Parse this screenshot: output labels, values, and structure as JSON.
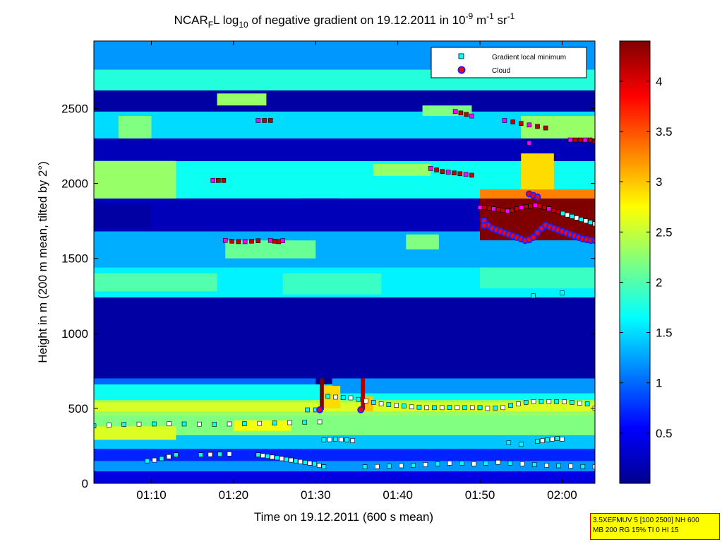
{
  "figure": {
    "title_parts": {
      "t1": "NCAR",
      "t1_sub": "F",
      "t2": "L log",
      "t2_sub": "10",
      "t3": " of negative gradient on 19.12.2011 in 10",
      "t3_sup1": "-9",
      "t4": " m",
      "t4_sup": "-1",
      "t5": " sr",
      "t5_sup": "-1"
    },
    "settings_line1": "3.5XEFMUV 5 [100 2500] NH 600",
    "settings_line2": "MB 200 RG 15% TI 0 HI 15"
  },
  "chart_data": {
    "type": "heatmap",
    "xlabel": "Time on 19.12.2011 (600 s mean)",
    "ylabel": "Height in m (200 m mean, tilted by 2°)",
    "x_range_min": [
      63,
      124
    ],
    "xticks_min": [
      70,
      80,
      90,
      100,
      110,
      120
    ],
    "xtick_labels": [
      "01:10",
      "01:20",
      "01:30",
      "01:40",
      "01:50",
      "02:00"
    ],
    "ylim": [
      0,
      2950
    ],
    "yticks": [
      0,
      500,
      1000,
      1500,
      2000,
      2500
    ],
    "ytick_labels": [
      "0",
      "500",
      "1000",
      "1500",
      "2000",
      "2500"
    ],
    "colorbar": {
      "range": [
        0,
        4.4
      ],
      "ticks": [
        0.5,
        1,
        1.5,
        2,
        2.5,
        3,
        3.5,
        4
      ],
      "tick_labels": [
        "0.5",
        "1",
        "1.5",
        "2",
        "2.5",
        "3",
        "3.5",
        "4"
      ],
      "colormap": [
        "#00008f",
        "#0000ff",
        "#00ffff",
        "#ffff00",
        "#ff0000",
        "#800000"
      ]
    },
    "legend": {
      "position": "top-right",
      "entries": [
        {
          "label": "Gradient local minimum",
          "marker": "square",
          "color": "#00ffff"
        },
        {
          "label": "Cloud",
          "marker": "circle",
          "color": "#ff0000"
        }
      ]
    },
    "layers": [
      {
        "t0": 63,
        "t1": 124,
        "h0": 0,
        "h1": 80,
        "v": 0.4
      },
      {
        "t0": 63,
        "t1": 124,
        "h0": 80,
        "h1": 150,
        "v": 1.2
      },
      {
        "t0": 63,
        "t1": 124,
        "h0": 150,
        "h1": 230,
        "v": 0.7
      },
      {
        "t0": 63,
        "t1": 124,
        "h0": 230,
        "h1": 320,
        "v": 1.4
      },
      {
        "t0": 63,
        "t1": 124,
        "h0": 320,
        "h1": 450,
        "v": 2.2
      },
      {
        "t0": 63,
        "t1": 124,
        "h0": 450,
        "h1": 560,
        "v": 2.3
      },
      {
        "t0": 63,
        "t1": 124,
        "h0": 560,
        "h1": 660,
        "v": 1.7
      },
      {
        "t0": 63,
        "t1": 90,
        "h0": 660,
        "h1": 760,
        "v": 1.0
      },
      {
        "t0": 92,
        "t1": 124,
        "h0": 600,
        "h1": 700,
        "v": 1.2
      },
      {
        "t0": 63,
        "t1": 124,
        "h0": 700,
        "h1": 1240,
        "v": 0.1
      },
      {
        "t0": 63,
        "t1": 124,
        "h0": 1240,
        "h1": 1440,
        "v": 1.6
      },
      {
        "t0": 63,
        "t1": 124,
        "h0": 1440,
        "h1": 1680,
        "v": 1.3
      },
      {
        "t0": 63,
        "t1": 124,
        "h0": 1680,
        "h1": 1900,
        "v": 0.2
      },
      {
        "t0": 63,
        "t1": 124,
        "h0": 1900,
        "h1": 2150,
        "v": 1.7
      },
      {
        "t0": 63,
        "t1": 124,
        "h0": 2150,
        "h1": 2300,
        "v": 0.2
      },
      {
        "t0": 63,
        "t1": 124,
        "h0": 2300,
        "h1": 2480,
        "v": 1.5
      },
      {
        "t0": 63,
        "t1": 124,
        "h0": 2480,
        "h1": 2620,
        "v": 0.1
      },
      {
        "t0": 63,
        "t1": 124,
        "h0": 2620,
        "h1": 2760,
        "v": 1.8
      },
      {
        "t0": 63,
        "t1": 124,
        "h0": 2760,
        "h1": 2950,
        "v": 1.2
      }
    ],
    "patches": [
      {
        "t0": 63,
        "t1": 73,
        "h0": 1900,
        "h1": 2150,
        "v": 2.3
      },
      {
        "t0": 66,
        "t1": 70,
        "h0": 2300,
        "h1": 2450,
        "v": 2.2
      },
      {
        "t0": 78,
        "t1": 84,
        "h0": 2520,
        "h1": 2600,
        "v": 2.3
      },
      {
        "t0": 97,
        "t1": 104,
        "h0": 2050,
        "h1": 2130,
        "v": 2.3
      },
      {
        "t0": 103,
        "t1": 109,
        "h0": 2450,
        "h1": 2520,
        "v": 2.2
      },
      {
        "t0": 115,
        "t1": 124,
        "h0": 2300,
        "h1": 2450,
        "v": 2.3
      },
      {
        "t0": 63,
        "t1": 78,
        "h0": 1280,
        "h1": 1400,
        "v": 2.0
      },
      {
        "t0": 86,
        "t1": 98,
        "h0": 1260,
        "h1": 1400,
        "v": 1.9
      },
      {
        "t0": 110,
        "t1": 124,
        "h0": 1300,
        "h1": 1440,
        "v": 1.9
      },
      {
        "t0": 79,
        "t1": 90,
        "h0": 1500,
        "h1": 1620,
        "v": 2.1
      },
      {
        "t0": 63,
        "t1": 124,
        "h0": 480,
        "h1": 540,
        "v": 2.6
      },
      {
        "t0": 63,
        "t1": 73,
        "h0": 290,
        "h1": 380,
        "v": 2.6
      },
      {
        "t0": 80,
        "t1": 87,
        "h0": 350,
        "h1": 420,
        "v": 2.7
      },
      {
        "t0": 101,
        "t1": 105,
        "h0": 1560,
        "h1": 1660,
        "v": 2.2
      },
      {
        "t0": 88,
        "t1": 93,
        "h0": 1700,
        "h1": 1900,
        "v": 0.2
      },
      {
        "t0": 63,
        "t1": 70,
        "h0": 1700,
        "h1": 1860,
        "v": 0.1
      }
    ],
    "cloud_layer": [
      {
        "t0": 110,
        "t1": 124,
        "h0": 1620,
        "h1": 1900,
        "v": 4.4
      },
      {
        "t0": 110,
        "t1": 124,
        "h0": 1900,
        "h1": 1960,
        "v": 3.3
      },
      {
        "t0": 115,
        "t1": 119,
        "h0": 1960,
        "h1": 2200,
        "v": 2.9
      },
      {
        "t0": 110,
        "t1": 124,
        "h0": 1560,
        "h1": 1620,
        "v": 1.3
      },
      {
        "t0": 90.5,
        "t1": 91,
        "h0": 490,
        "h1": 700,
        "v": 4.4
      },
      {
        "t0": 91,
        "t1": 93,
        "h0": 500,
        "h1": 650,
        "v": 2.9
      },
      {
        "t0": 95.5,
        "t1": 96,
        "h0": 490,
        "h1": 700,
        "v": 4.2
      },
      {
        "t0": 96,
        "t1": 97,
        "h0": 480,
        "h1": 580,
        "v": 3.0
      }
    ],
    "gradient_minimum_lines": [
      {
        "h": [
          383,
          388,
          393,
          395,
          396,
          397,
          396,
          395,
          394,
          396,
          398,
          400,
          402,
          405,
          408,
          410
        ],
        "t0": 63,
        "t1": 90.5
      },
      {
        "h": [
          580,
          575,
          572,
          570,
          560,
          550,
          540,
          530,
          525,
          520,
          515,
          510,
          508,
          505,
          505,
          505,
          506,
          505,
          505,
          505,
          505
        ],
        "t0": 91.5,
        "t1": 110
      },
      {
        "h": [
          505,
          500,
          502,
          505,
          520,
          530,
          540,
          545,
          545,
          545,
          545,
          544,
          540,
          535,
          530,
          500
        ],
        "t0": 110,
        "t1": 124
      },
      {
        "h": [
          190,
          185,
          180,
          175,
          170,
          165,
          160,
          155,
          150,
          145,
          140,
          135,
          130,
          120,
          110
        ],
        "t0": 83,
        "t1": 91
      },
      {
        "h": [
          110,
          112,
          115,
          118,
          120,
          125,
          130,
          135,
          135,
          130,
          135,
          140,
          135,
          130,
          125,
          120,
          118,
          115,
          112,
          110
        ],
        "t0": 96,
        "t1": 124
      },
      {
        "h": [
          150,
          155,
          165,
          178,
          190
        ],
        "t0": 69.5,
        "t1": 73
      },
      {
        "h": [
          190,
          192,
          194,
          196
        ],
        "t0": 76,
        "t1": 79.5
      },
      {
        "h": [
          290,
          292,
          295,
          292,
          290,
          285
        ],
        "t0": 91,
        "t1": 94.5
      },
      {
        "h": [
          2100,
          2090,
          2080,
          2075,
          2070,
          2065,
          2060,
          2055
        ],
        "t0": 104,
        "t1": 109
      },
      {
        "h": [
          2480,
          2470,
          2460,
          2450
        ],
        "t0": 107,
        "t1": 109
      },
      {
        "h": [
          2420,
          2410,
          2400,
          2390,
          2380,
          2370
        ],
        "t0": 113,
        "t1": 118
      },
      {
        "h": [
          2290,
          2290,
          2290,
          2290,
          2290,
          2280
        ],
        "t0": 121,
        "t1": 124
      },
      {
        "h": [
          1840,
          1840,
          1835,
          1830,
          1825,
          1820,
          1815,
          1820,
          1830,
          1840,
          1845,
          1850,
          1855,
          1850,
          1840,
          1830,
          1820,
          1810,
          1800,
          1790,
          1780,
          1770,
          1760,
          1750,
          1740,
          1730
        ],
        "t0": 110,
        "t1": 124
      },
      {
        "h": [
          2020,
          2020,
          2020
        ],
        "t0": 77.5,
        "t1": 78.8
      },
      {
        "h": [
          1620,
          1615,
          1612,
          1612,
          1615,
          1618
        ],
        "t0": 79,
        "t1": 83
      },
      {
        "h": [
          1620,
          1615,
          1612,
          1618
        ],
        "t0": 84.5,
        "t1": 86
      },
      {
        "h": [
          2420,
          2420,
          2420
        ],
        "t0": 83,
        "t1": 84.5
      },
      {
        "h": [
          2270
        ],
        "t0": 116,
        "t1": 116
      },
      {
        "h": [
          1250
        ],
        "t0": 116.5,
        "t1": 116.5
      },
      {
        "h": [
          1270
        ],
        "t0": 120,
        "t1": 120
      },
      {
        "h": [
          270
        ],
        "t0": 113.5,
        "t1": 113.5
      },
      {
        "h": [
          260
        ],
        "t0": 115,
        "t1": 115
      },
      {
        "h": [
          280,
          285,
          290,
          295,
          300,
          295
        ],
        "t0": 117,
        "t1": 120
      },
      {
        "h": [
          490
        ],
        "t0": 89,
        "t1": 89
      },
      {
        "h": [
          490
        ],
        "t0": 90,
        "t1": 90
      }
    ],
    "cloud_lines": [
      {
        "h": [
          1750,
          1720,
          1700,
          1690,
          1680,
          1670,
          1660,
          1650,
          1640,
          1630,
          1620,
          1625,
          1640,
          1670,
          1700,
          1720,
          1710,
          1700,
          1690,
          1680,
          1670,
          1660,
          1650,
          1640,
          1630,
          1625,
          1620,
          1620
        ],
        "t0": 110.5,
        "t1": 124
      },
      {
        "h": [
          1930,
          1920,
          1910
        ],
        "t0": 116,
        "t1": 117
      },
      {
        "h": [
          1720
        ],
        "t0": 110.5,
        "t1": 110.5
      },
      {
        "h": [
          490
        ],
        "t0": 90.5,
        "t1": 90.5
      },
      {
        "h": [
          490
        ],
        "t0": 95.5,
        "t1": 95.5
      }
    ]
  }
}
